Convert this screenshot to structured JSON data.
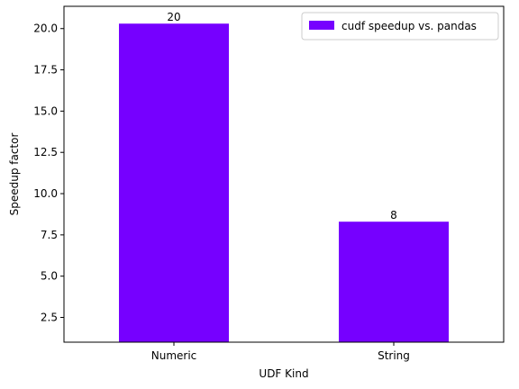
{
  "chart_data": {
    "type": "bar",
    "title": "",
    "xlabel": "UDF Kind",
    "ylabel": "Speedup factor",
    "categories": [
      "Numeric",
      "String"
    ],
    "series": [
      {
        "name": "cudf speedup vs. pandas",
        "values": [
          20.3,
          8.3
        ]
      }
    ],
    "data_labels": [
      "20",
      "8"
    ],
    "ylim": [
      1.0,
      21.35
    ],
    "yticks": [
      2.5,
      5.0,
      7.5,
      10.0,
      12.5,
      15.0,
      17.5,
      20.0
    ],
    "ytick_labels": [
      "2.5",
      "5.0",
      "7.5",
      "10.0",
      "12.5",
      "15.0",
      "17.5",
      "20.0"
    ],
    "bar_color": "#7600ff",
    "grid": false,
    "legend_position": "top-right"
  }
}
